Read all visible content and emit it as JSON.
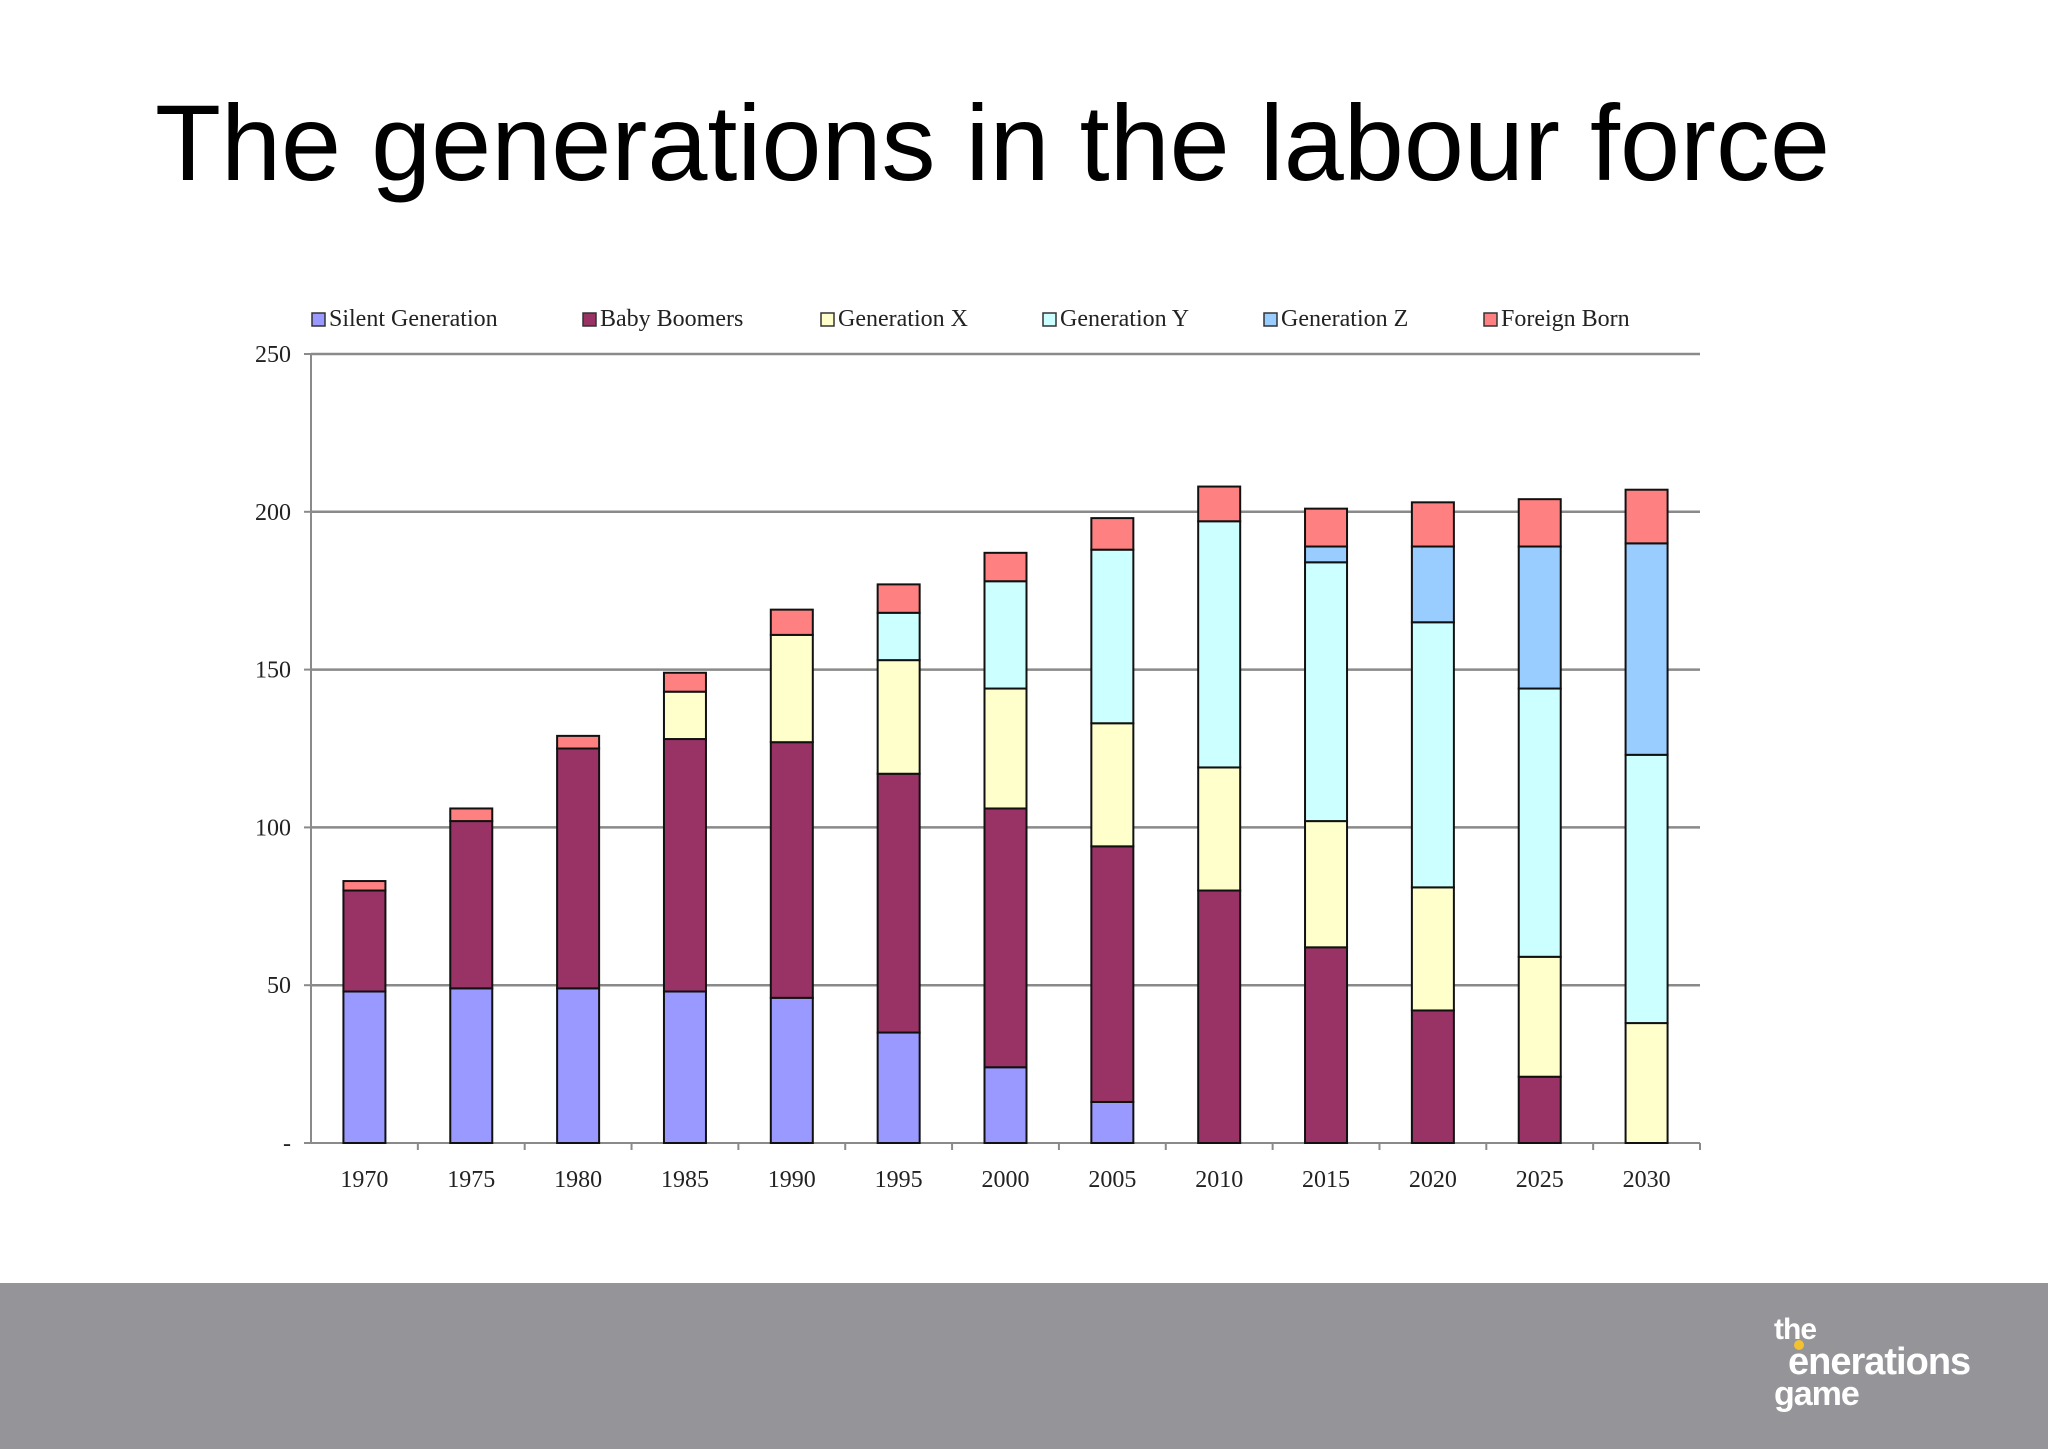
{
  "slide": {
    "title": "The generations in the labour force"
  },
  "logo": {
    "line1": "the",
    "line2": "enerations",
    "line3": "game"
  },
  "chart_data": {
    "type": "bar",
    "stacked": true,
    "title": "",
    "xlabel": "",
    "ylabel": "",
    "ylim": [
      0,
      250
    ],
    "yticks": [
      0,
      50,
      100,
      150,
      200,
      250
    ],
    "ytick_labels": [
      "-",
      "50",
      "100",
      "150",
      "200",
      "250"
    ],
    "grid": true,
    "legend_position": "top",
    "categories": [
      "1970",
      "1975",
      "1980",
      "1985",
      "1990",
      "1995",
      "2000",
      "2005",
      "2010",
      "2015",
      "2020",
      "2025",
      "2030"
    ],
    "series": [
      {
        "name": "Silent Generation",
        "color": "#9999ff",
        "values": [
          48,
          49,
          49,
          48,
          46,
          35,
          24,
          13,
          0,
          0,
          0,
          0,
          0
        ]
      },
      {
        "name": "Baby Boomers",
        "color": "#993366",
        "values": [
          32,
          53,
          76,
          80,
          81,
          82,
          82,
          81,
          80,
          62,
          42,
          21,
          0
        ]
      },
      {
        "name": "Generation X",
        "color": "#ffffcc",
        "values": [
          0,
          0,
          0,
          15,
          34,
          36,
          38,
          39,
          39,
          40,
          39,
          38,
          38
        ]
      },
      {
        "name": "Generation Y",
        "color": "#ccffff",
        "values": [
          0,
          0,
          0,
          0,
          0,
          15,
          34,
          55,
          78,
          82,
          84,
          85,
          85
        ]
      },
      {
        "name": "Generation Z",
        "color": "#99ccff",
        "values": [
          0,
          0,
          0,
          0,
          0,
          0,
          0,
          0,
          0,
          5,
          24,
          45,
          67
        ]
      },
      {
        "name": "Foreign Born",
        "color": "#ff8080",
        "values": [
          3,
          4,
          4,
          6,
          8,
          9,
          9,
          10,
          11,
          12,
          14,
          15,
          17
        ]
      }
    ]
  }
}
